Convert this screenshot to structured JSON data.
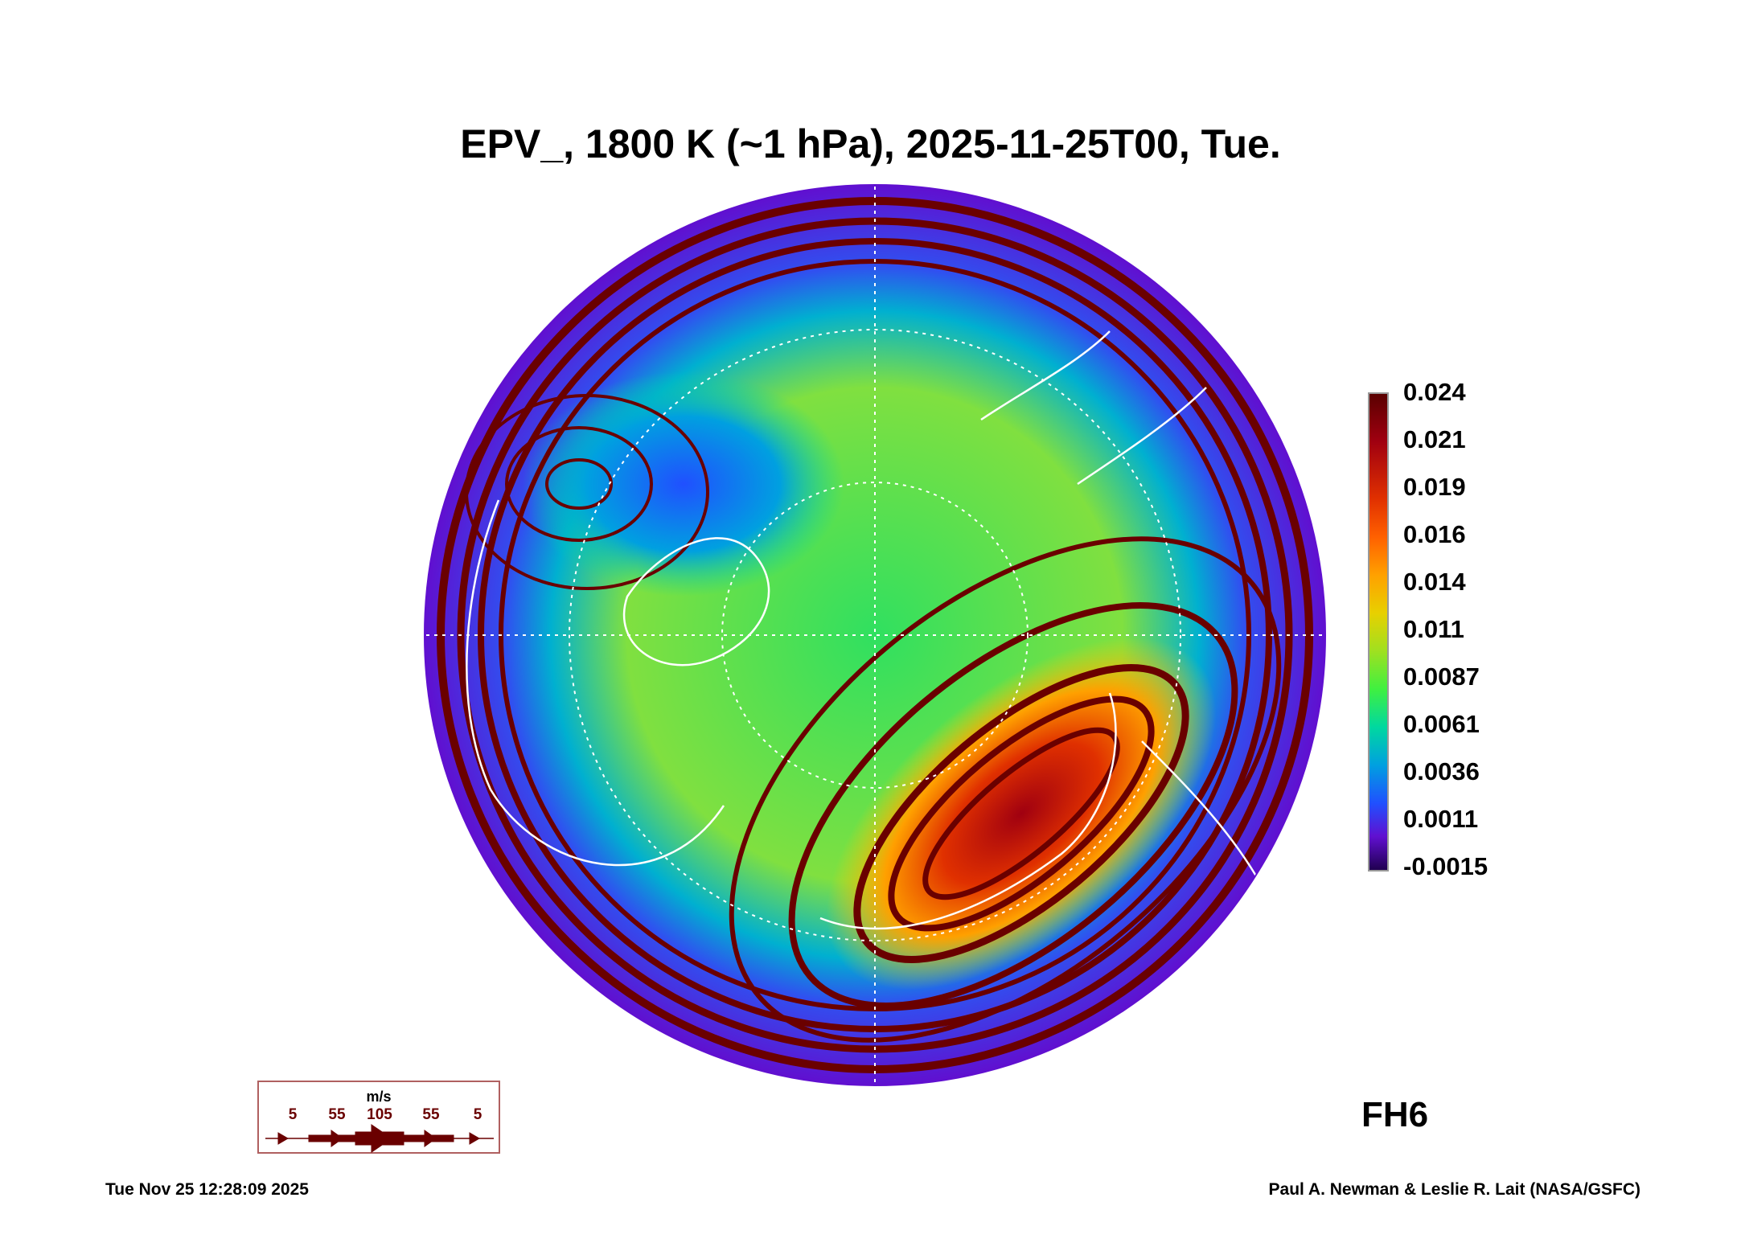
{
  "title": "EPV_, 1800 K (~1 hPa), 2025-11-25T00, Tue.",
  "chart_data": {
    "type": "heatmap",
    "projection": "north polar stereographic",
    "variable": "EPV_",
    "level": "1800 K (~1 hPa)",
    "valid_time": "2025-11-25T00",
    "colorbar": {
      "ticks": [
        "0.024",
        "0.021",
        "0.019",
        "0.016",
        "0.014",
        "0.011",
        "0.0087",
        "0.0061",
        "0.0036",
        "0.0011",
        "-0.0015"
      ],
      "range": [
        -0.0015,
        0.024
      ],
      "colors": [
        "#5a0000",
        "#a00010",
        "#e03000",
        "#ff6000",
        "#ffa000",
        "#e8d000",
        "#a0e020",
        "#40f040",
        "#00d8a0",
        "#00a0e0",
        "#2050ff",
        "#6010d0",
        "#200050"
      ]
    },
    "wind_legend": {
      "unit": "m/s",
      "values": [
        "5",
        "55",
        "105",
        "55",
        "5"
      ],
      "color": "#6a0000"
    }
  },
  "forecast_label": "FH6",
  "footer": {
    "timestamp": "Tue Nov 25 12:28:09 2025",
    "credit": "Paul A. Newman & Leslie R. Lait (NASA/GSFC)"
  }
}
